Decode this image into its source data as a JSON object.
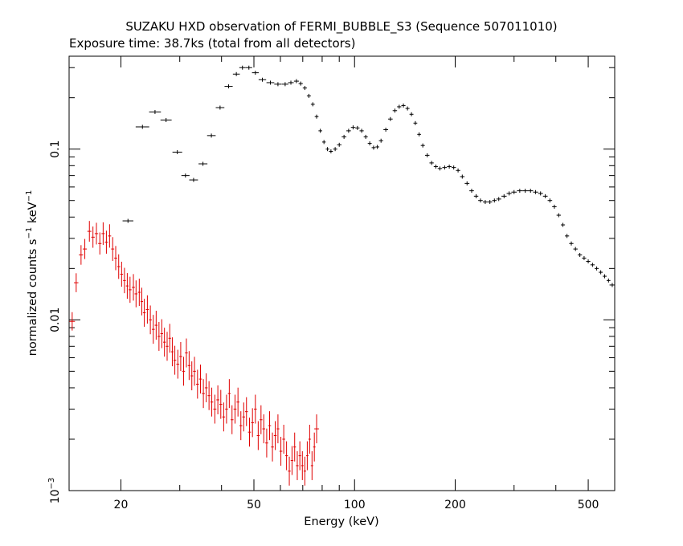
{
  "chart_data": {
    "type": "scatter",
    "title": "SUZAKU HXD observation of FERMI_BUBBLE_S3 (Sequence 507011010)",
    "subtitle": "Exposure time: 38.7ks (total from all detectors)",
    "xlabel": "Energy (keV)",
    "ylabel": {
      "base": "normalized counts s",
      "exp1": "−1",
      "mid": " keV",
      "exp2": "−1"
    },
    "x_scale": "log",
    "y_scale": "log",
    "xlim": [
      14.0,
      600.0
    ],
    "ylim": [
      0.001,
      0.35
    ],
    "x_ticks": [
      {
        "value": 20,
        "label": "20"
      },
      {
        "value": 50,
        "label": "50"
      },
      {
        "value": 100,
        "label": "100"
      },
      {
        "value": 200,
        "label": "200"
      },
      {
        "value": 500,
        "label": "500"
      }
    ],
    "y_ticks": [
      {
        "value": 0.1,
        "label": "0.1"
      },
      {
        "value": 0.01,
        "label": "0.01"
      },
      {
        "value": 0.001,
        "label": "10",
        "exp": "−3"
      }
    ],
    "grid": false,
    "legend": "none",
    "series": [
      {
        "color": "#000000",
        "points": [
          [
            21.0,
            0.038
          ],
          [
            23.2,
            0.135
          ],
          [
            25.3,
            0.165
          ],
          [
            27.3,
            0.148
          ],
          [
            29.5,
            0.096
          ],
          [
            31.2,
            0.07
          ],
          [
            33.0,
            0.066
          ],
          [
            35.2,
            0.082
          ],
          [
            37.3,
            0.12
          ],
          [
            39.6,
            0.175
          ],
          [
            42.0,
            0.233
          ],
          [
            44.3,
            0.275
          ],
          [
            46.2,
            0.3
          ],
          [
            48.3,
            0.3
          ],
          [
            50.5,
            0.28
          ],
          [
            53.0,
            0.255
          ],
          [
            56.0,
            0.245
          ],
          [
            59.0,
            0.24
          ],
          [
            62.0,
            0.24
          ],
          [
            64.5,
            0.245
          ],
          [
            67.0,
            0.25
          ],
          [
            69.0,
            0.242
          ],
          [
            71.0,
            0.228
          ],
          [
            73.0,
            0.205
          ],
          [
            75.0,
            0.183
          ],
          [
            77.0,
            0.155
          ],
          [
            79.0,
            0.128
          ],
          [
            81.0,
            0.11
          ],
          [
            83.0,
            0.1
          ],
          [
            85.0,
            0.097
          ],
          [
            87.5,
            0.1
          ],
          [
            90.0,
            0.106
          ],
          [
            93.0,
            0.118
          ],
          [
            96.0,
            0.128
          ],
          [
            99.0,
            0.134
          ],
          [
            102.0,
            0.133
          ],
          [
            105.0,
            0.128
          ],
          [
            108.0,
            0.118
          ],
          [
            111.0,
            0.108
          ],
          [
            114.0,
            0.102
          ],
          [
            117.0,
            0.103
          ],
          [
            120.0,
            0.112
          ],
          [
            124.0,
            0.13
          ],
          [
            128.0,
            0.15
          ],
          [
            132.0,
            0.168
          ],
          [
            136.0,
            0.177
          ],
          [
            140.0,
            0.18
          ],
          [
            144.0,
            0.173
          ],
          [
            148.0,
            0.16
          ],
          [
            152.0,
            0.142
          ],
          [
            156.0,
            0.122
          ],
          [
            160.0,
            0.105
          ],
          [
            165.0,
            0.092
          ],
          [
            170.0,
            0.083
          ],
          [
            175.0,
            0.079
          ],
          [
            180.0,
            0.077
          ],
          [
            186.0,
            0.078
          ],
          [
            192.0,
            0.079
          ],
          [
            198.0,
            0.078
          ],
          [
            204.0,
            0.075
          ],
          [
            210.0,
            0.069
          ],
          [
            217.0,
            0.063
          ],
          [
            224.0,
            0.057
          ],
          [
            231.0,
            0.053
          ],
          [
            238.0,
            0.05
          ],
          [
            246.0,
            0.049
          ],
          [
            254.0,
            0.049
          ],
          [
            262.0,
            0.05
          ],
          [
            270.0,
            0.051
          ],
          [
            280.0,
            0.053
          ],
          [
            290.0,
            0.055
          ],
          [
            300.0,
            0.056
          ],
          [
            312.0,
            0.057
          ],
          [
            324.0,
            0.057
          ],
          [
            336.0,
            0.057
          ],
          [
            348.0,
            0.056
          ],
          [
            360.0,
            0.055
          ],
          [
            372.0,
            0.053
          ],
          [
            384.0,
            0.05
          ],
          [
            396.0,
            0.046
          ],
          [
            408.0,
            0.041
          ],
          [
            420.0,
            0.036
          ],
          [
            432.0,
            0.031
          ],
          [
            445.0,
            0.028
          ],
          [
            458.0,
            0.026
          ],
          [
            472.0,
            0.024
          ],
          [
            486.0,
            0.023
          ],
          [
            500.0,
            0.022
          ],
          [
            515.0,
            0.021
          ],
          [
            530.0,
            0.02
          ],
          [
            545.0,
            0.019
          ],
          [
            560.0,
            0.018
          ],
          [
            575.0,
            0.017
          ],
          [
            590.0,
            0.016
          ]
        ]
      },
      {
        "color": "#e00000",
        "points": [
          [
            14.3,
            0.0098
          ],
          [
            14.7,
            0.0165
          ],
          [
            15.2,
            0.024
          ],
          [
            15.6,
            0.026
          ],
          [
            16.1,
            0.033
          ],
          [
            16.5,
            0.0305
          ],
          [
            16.9,
            0.032
          ],
          [
            17.3,
            0.028
          ],
          [
            17.7,
            0.032
          ],
          [
            18.1,
            0.0285
          ],
          [
            18.5,
            0.031
          ],
          [
            18.9,
            0.026
          ],
          [
            19.3,
            0.023
          ],
          [
            19.7,
            0.0205
          ],
          [
            20.1,
            0.0185
          ],
          [
            20.5,
            0.017
          ],
          [
            20.9,
            0.0158
          ],
          [
            21.3,
            0.015
          ],
          [
            21.8,
            0.0155
          ],
          [
            22.2,
            0.0142
          ],
          [
            22.7,
            0.0145
          ],
          [
            23.1,
            0.0128
          ],
          [
            23.5,
            0.011
          ],
          [
            24.0,
            0.0115
          ],
          [
            24.5,
            0.01
          ],
          [
            25.0,
            0.0088
          ],
          [
            25.5,
            0.0093
          ],
          [
            26.0,
            0.008
          ],
          [
            26.5,
            0.0083
          ],
          [
            27.0,
            0.0074
          ],
          [
            27.5,
            0.007
          ],
          [
            28.0,
            0.0078
          ],
          [
            28.5,
            0.0065
          ],
          [
            29.0,
            0.0058
          ],
          [
            29.6,
            0.0055
          ],
          [
            30.2,
            0.0061
          ],
          [
            30.8,
            0.005
          ],
          [
            31.4,
            0.0064
          ],
          [
            32.0,
            0.0054
          ],
          [
            32.6,
            0.0047
          ],
          [
            33.2,
            0.005
          ],
          [
            33.9,
            0.0042
          ],
          [
            34.6,
            0.0045
          ],
          [
            35.3,
            0.0037
          ],
          [
            36.0,
            0.004
          ],
          [
            36.7,
            0.0036
          ],
          [
            37.4,
            0.0033
          ],
          [
            38.2,
            0.003
          ],
          [
            39.0,
            0.0034
          ],
          [
            39.8,
            0.0032
          ],
          [
            40.6,
            0.0027
          ],
          [
            41.4,
            0.003
          ],
          [
            42.2,
            0.0037
          ],
          [
            43.0,
            0.0026
          ],
          [
            43.9,
            0.003
          ],
          [
            44.8,
            0.0033
          ],
          [
            45.7,
            0.0024
          ],
          [
            46.6,
            0.0027
          ],
          [
            47.5,
            0.0029
          ],
          [
            48.5,
            0.0022
          ],
          [
            49.5,
            0.0025
          ],
          [
            50.5,
            0.003
          ],
          [
            51.5,
            0.0021
          ],
          [
            52.5,
            0.0026
          ],
          [
            53.5,
            0.0023
          ],
          [
            54.6,
            0.0019
          ],
          [
            55.7,
            0.0024
          ],
          [
            56.8,
            0.0018
          ],
          [
            57.9,
            0.0021
          ],
          [
            59.0,
            0.0023
          ],
          [
            60.2,
            0.0017
          ],
          [
            61.4,
            0.002
          ],
          [
            62.6,
            0.0016
          ],
          [
            63.8,
            0.0013
          ],
          [
            65.0,
            0.0015
          ],
          [
            66.2,
            0.0018
          ],
          [
            67.4,
            0.0014
          ],
          [
            68.6,
            0.0016
          ],
          [
            69.8,
            0.0014
          ],
          [
            71.0,
            0.0013
          ],
          [
            72.2,
            0.0016
          ],
          [
            73.4,
            0.002
          ],
          [
            74.6,
            0.0014
          ],
          [
            75.8,
            0.0018
          ],
          [
            77.0,
            0.0023
          ]
        ]
      }
    ]
  }
}
